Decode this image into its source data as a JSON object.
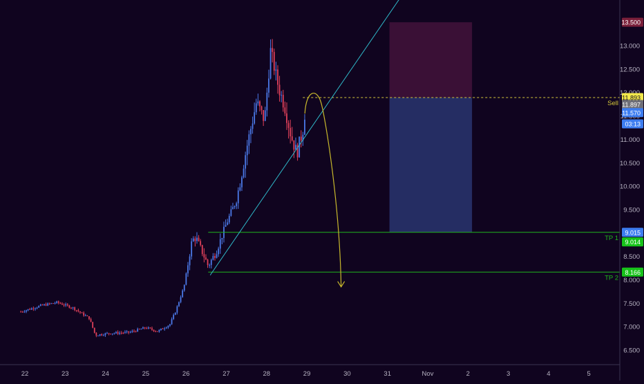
{
  "colors": {
    "background": "#10041f",
    "axis_text": "#b7b3c2",
    "axis_line": "#3a3350",
    "candle_up": "#4b79e8",
    "candle_down": "#e0405a",
    "trendline": "#2fb9c9",
    "target_line": "#1fb51f",
    "sell_line": "#d6c93b",
    "projection_arrow": "#c9b92c",
    "stop_zone": "#3a1036",
    "profit_zone": "#252d63",
    "badge_stop": "#7a1f3a",
    "badge_sell": "#f2e84a",
    "badge_last": "#6f6f78",
    "badge_blue": "#3d7df0",
    "badge_green": "#17c21a"
  },
  "chart_data": {
    "type": "candlestick",
    "x_ticks": [
      "22",
      "23",
      "24",
      "25",
      "26",
      "27",
      "28",
      "29",
      "30",
      "31",
      "Nov",
      "2",
      "3",
      "4",
      "5"
    ],
    "y_ticks": [
      "13.000",
      "12.500",
      "12.000",
      "11.500",
      "11.000",
      "10.500",
      "10.000",
      "9.500",
      "9.000",
      "8.500",
      "8.000",
      "7.500",
      "7.000",
      "6.500"
    ],
    "ylim": [
      6.2,
      13.6
    ],
    "price_path": [
      {
        "day": 21.9,
        "price": 7.32
      },
      {
        "day": 22.4,
        "price": 7.45
      },
      {
        "day": 22.8,
        "price": 7.52
      },
      {
        "day": 23.2,
        "price": 7.4
      },
      {
        "day": 23.6,
        "price": 7.18
      },
      {
        "day": 23.75,
        "price": 6.82
      },
      {
        "day": 24.1,
        "price": 6.86
      },
      {
        "day": 24.6,
        "price": 6.88
      },
      {
        "day": 25.0,
        "price": 6.98
      },
      {
        "day": 25.3,
        "price": 6.9
      },
      {
        "day": 25.6,
        "price": 7.05
      },
      {
        "day": 25.75,
        "price": 7.35
      },
      {
        "day": 25.95,
        "price": 7.85
      },
      {
        "day": 26.15,
        "price": 8.85
      },
      {
        "day": 26.25,
        "price": 8.9
      },
      {
        "day": 26.55,
        "price": 8.3
      },
      {
        "day": 26.75,
        "price": 8.6
      },
      {
        "day": 27.0,
        "price": 9.2
      },
      {
        "day": 27.25,
        "price": 9.7
      },
      {
        "day": 27.5,
        "price": 10.8
      },
      {
        "day": 27.75,
        "price": 11.8
      },
      {
        "day": 27.95,
        "price": 11.4
      },
      {
        "day": 28.1,
        "price": 12.9
      },
      {
        "day": 28.3,
        "price": 12.1
      },
      {
        "day": 28.45,
        "price": 11.7
      },
      {
        "day": 28.6,
        "price": 11.1
      },
      {
        "day": 28.75,
        "price": 10.7
      },
      {
        "day": 28.9,
        "price": 11.2
      },
      {
        "day": 28.95,
        "price": 11.57
      }
    ],
    "trendline": {
      "start": {
        "day": 26.6,
        "price": 8.1
      },
      "end": {
        "day": 31.3,
        "price": 14.0
      }
    },
    "projection": {
      "start": {
        "day": 28.95,
        "price": 11.55
      },
      "peak": {
        "day": 29.15,
        "price": 11.98
      },
      "end": {
        "day": 29.85,
        "price": 7.85
      }
    },
    "levels": [
      {
        "label": "Sell",
        "price": 11.893,
        "style": "dashed"
      },
      {
        "label": "TP 1",
        "price": 9.015,
        "style": "solid"
      },
      {
        "label": "TP 2",
        "price": 8.166,
        "style": "solid"
      }
    ],
    "position_box": {
      "from_day": 31.05,
      "to_day": 33.1,
      "stop": 13.5,
      "entry": 11.893,
      "target": 9.015
    },
    "price_badges": [
      {
        "text": "13.500",
        "price": 13.5,
        "kind": "stop"
      },
      {
        "text": "11.893",
        "price": 11.893,
        "kind": "sell"
      },
      {
        "text": "11.897",
        "price": 11.745,
        "kind": "last"
      },
      {
        "text": "11.570",
        "price": 11.57,
        "kind": "blue"
      },
      {
        "text": "03:13",
        "price": 11.33,
        "kind": "blue"
      },
      {
        "text": "9.015",
        "price": 9.015,
        "kind": "blue"
      },
      {
        "text": "9.014",
        "price": 8.81,
        "kind": "green"
      },
      {
        "text": "8.166",
        "price": 8.166,
        "kind": "green"
      }
    ]
  }
}
